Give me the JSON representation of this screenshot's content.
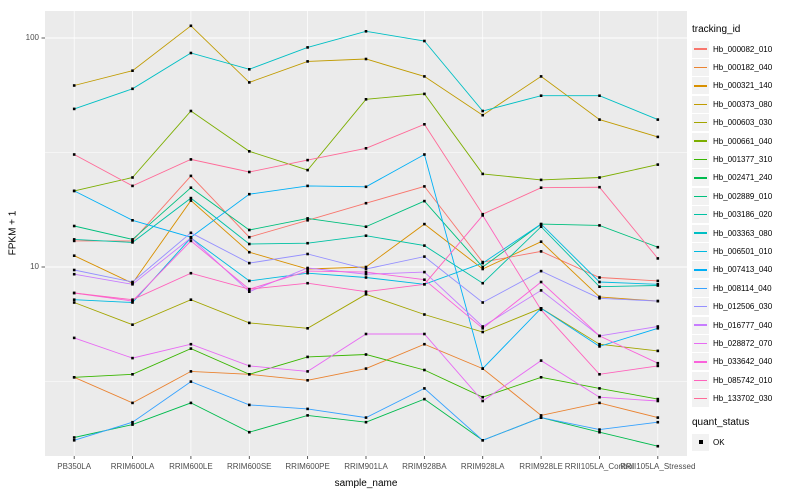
{
  "figure": {
    "background": "#FFFFFF",
    "panel_bg": "#EBEBEB",
    "grid_color": "#FFFFFF",
    "tick_color": "#333333",
    "tick_label_color": "#4D4D4D",
    "point_color": "#000000",
    "legend_key_bg": "#F2F2F2"
  },
  "chart_data": {
    "type": "line",
    "title": "",
    "xlabel": "sample_name",
    "ylabel": "FPKM + 1",
    "y_scale": "log10",
    "grid": "on",
    "legend_position": "right",
    "points_marker": "black-square",
    "ylim": [
      1.45,
      131
    ],
    "y_major_ticks": [
      100,
      10
    ],
    "y_major_tick_labels": [
      "100",
      "10"
    ],
    "y_minor_gridlines": [
      31.62,
      3.162
    ],
    "categories": [
      "PB350LA",
      "RRIM600LA",
      "RRIM600LE",
      "RRIM600SE",
      "RRIM600PE",
      "RRIM901LA",
      "RRIM928BA",
      "RRIM928LA",
      "RRIM928LE",
      "RRII105LA_Control",
      "RRII105LA_Stressed"
    ],
    "legend": {
      "title": "tracking_id"
    },
    "legend2": {
      "title": "quant_status",
      "entries": [
        {
          "label": "OK",
          "marker": "black-square"
        }
      ]
    },
    "series": [
      {
        "name": "Hb_000082_010",
        "color": "#F8766D",
        "values": [
          13,
          13,
          25,
          13.5,
          16,
          19,
          22.5,
          10.5,
          11.7,
          9.0,
          8.7
        ]
      },
      {
        "name": "Hb_000182_040",
        "color": "#EA8331",
        "values": [
          3.3,
          2.55,
          3.5,
          3.4,
          3.2,
          3.6,
          4.6,
          3.6,
          2.25,
          2.55,
          2.2
        ]
      },
      {
        "name": "Hb_000321_140",
        "color": "#D89000",
        "values": [
          11.2,
          8.5,
          19.5,
          11.6,
          9.8,
          10.0,
          15.4,
          9.8,
          12.9,
          7.4,
          7.1
        ]
      },
      {
        "name": "Hb_000373_080",
        "color": "#C09B00",
        "values": [
          62,
          72,
          113,
          64,
          79,
          81,
          68,
          46,
          68,
          44,
          37
        ]
      },
      {
        "name": "Hb_000603_030",
        "color": "#A3A500",
        "values": [
          7.0,
          5.6,
          7.2,
          5.7,
          5.4,
          7.6,
          6.2,
          5.2,
          6.6,
          4.6,
          4.3
        ]
      },
      {
        "name": "Hb_000661_040",
        "color": "#7CAE00",
        "values": [
          21.5,
          24.6,
          48,
          32,
          26.5,
          54,
          57,
          25.5,
          24,
          24.6,
          28
        ]
      },
      {
        "name": "Hb_001377_310",
        "color": "#39B600",
        "values": [
          3.3,
          3.4,
          4.4,
          3.4,
          4.05,
          4.15,
          3.55,
          2.7,
          3.3,
          2.95,
          2.65
        ]
      },
      {
        "name": "Hb_002471_240",
        "color": "#00BB4E",
        "values": [
          1.8,
          2.05,
          2.55,
          1.9,
          2.25,
          2.1,
          2.65,
          1.75,
          2.2,
          1.9,
          1.65
        ]
      },
      {
        "name": "Hb_002889_010",
        "color": "#00BF7D",
        "values": [
          15.1,
          13.2,
          22.2,
          14.5,
          16.3,
          15.0,
          19.4,
          10.0,
          15.4,
          15.2,
          12.2
        ]
      },
      {
        "name": "Hb_003186_020",
        "color": "#00C1A3",
        "values": [
          13.2,
          12.8,
          20,
          12.6,
          12.7,
          13.7,
          12.4,
          8.5,
          15.0,
          8.2,
          8.3
        ]
      },
      {
        "name": "Hb_003363_080",
        "color": "#00BFC4",
        "values": [
          49,
          60,
          86,
          73,
          91,
          107,
          97,
          48,
          56,
          56,
          44
        ]
      },
      {
        "name": "Hb_006501_010",
        "color": "#00BAE0",
        "values": [
          7.2,
          7.0,
          13.4,
          8.7,
          9.4,
          9.0,
          8.4,
          10.4,
          15.4,
          8.6,
          8.4
        ]
      },
      {
        "name": "Hb_007413_040",
        "color": "#00B0F6",
        "values": [
          21.5,
          16,
          13.5,
          20.8,
          22.6,
          22.4,
          31,
          3.6,
          6.6,
          4.5,
          5.4
        ]
      },
      {
        "name": "Hb_008114_040",
        "color": "#35A2FF",
        "values": [
          1.75,
          2.1,
          3.16,
          2.5,
          2.4,
          2.2,
          2.95,
          1.75,
          2.2,
          1.95,
          2.1
        ]
      },
      {
        "name": "Hb_012506_030",
        "color": "#9590FF",
        "values": [
          9.7,
          8.6,
          14.1,
          10.4,
          11.4,
          9.8,
          11.1,
          7.0,
          9.6,
          7.3,
          7.1
        ]
      },
      {
        "name": "Hb_016777_040",
        "color": "#C77CFF",
        "values": [
          9.3,
          8.4,
          13.4,
          7.8,
          9.9,
          9.3,
          9.5,
          5.5,
          7.9,
          5.0,
          5.5
        ]
      },
      {
        "name": "Hb_028872_070",
        "color": "#E76BF3",
        "values": [
          4.9,
          4.0,
          4.6,
          3.7,
          3.5,
          5.1,
          5.1,
          2.6,
          3.9,
          2.7,
          2.6
        ]
      },
      {
        "name": "Hb_033642_040",
        "color": "#FA62DB",
        "values": [
          7.7,
          7.1,
          13.0,
          8.0,
          9.6,
          9.5,
          8.8,
          5.4,
          8.6,
          5.0,
          3.8
        ]
      },
      {
        "name": "Hb_085742_010",
        "color": "#FF62BC",
        "values": [
          7.7,
          7.2,
          9.4,
          8.0,
          8.5,
          7.8,
          8.4,
          16.8,
          6.5,
          3.4,
          3.7
        ]
      },
      {
        "name": "Hb_133702_030",
        "color": "#FF6A98",
        "values": [
          31,
          22.6,
          29.5,
          26,
          29.3,
          33,
          42,
          17,
          22.2,
          22.3,
          10.9
        ]
      }
    ]
  }
}
